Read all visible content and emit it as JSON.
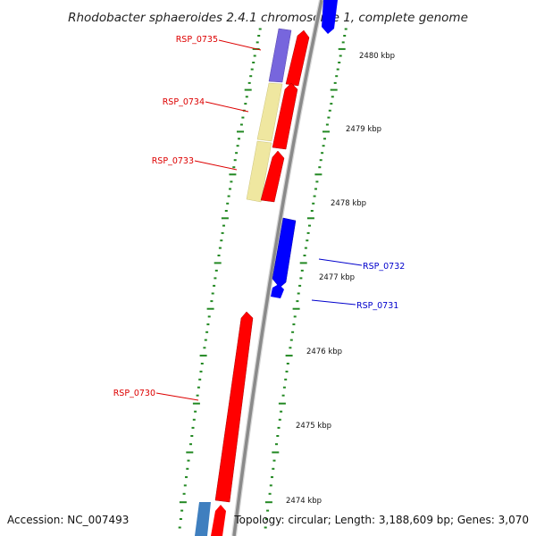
{
  "title": "Rhodobacter sphaeroides 2.4.1 chromosome 1, complete genome",
  "footer": {
    "accession": "Accession: NC_007493",
    "summary": "Topology: circular; Length: 3,188,609 bp; Genes: 3,070"
  },
  "scale_labels": [
    "2480 kbp",
    "2479 kbp",
    "2478 kbp",
    "2477 kbp",
    "2476 kbp",
    "2475 kbp",
    "2474 kbp"
  ],
  "genes": [
    {
      "name": "RSP_0735",
      "strand": "forward",
      "color": "#7766dd"
    },
    {
      "name": "RSP_0734",
      "strand": "forward",
      "color": "#efe7a0"
    },
    {
      "name": "RSP_0733",
      "strand": "forward",
      "color": "#efe7a0"
    },
    {
      "name": "RSP_0732",
      "strand": "reverse",
      "color": "#0000ff"
    },
    {
      "name": "RSP_0731",
      "strand": "reverse",
      "color": "#0000ff"
    },
    {
      "name": "RSP_0730",
      "strand": "forward",
      "color": "#ff0000"
    }
  ],
  "colors": {
    "forward_label": "#dd0000",
    "reverse_label": "#0000cc",
    "forward_feature": "#ff0000",
    "reverse_feature": "#0000ff",
    "backbone": "#888888",
    "tick": "#228822"
  }
}
